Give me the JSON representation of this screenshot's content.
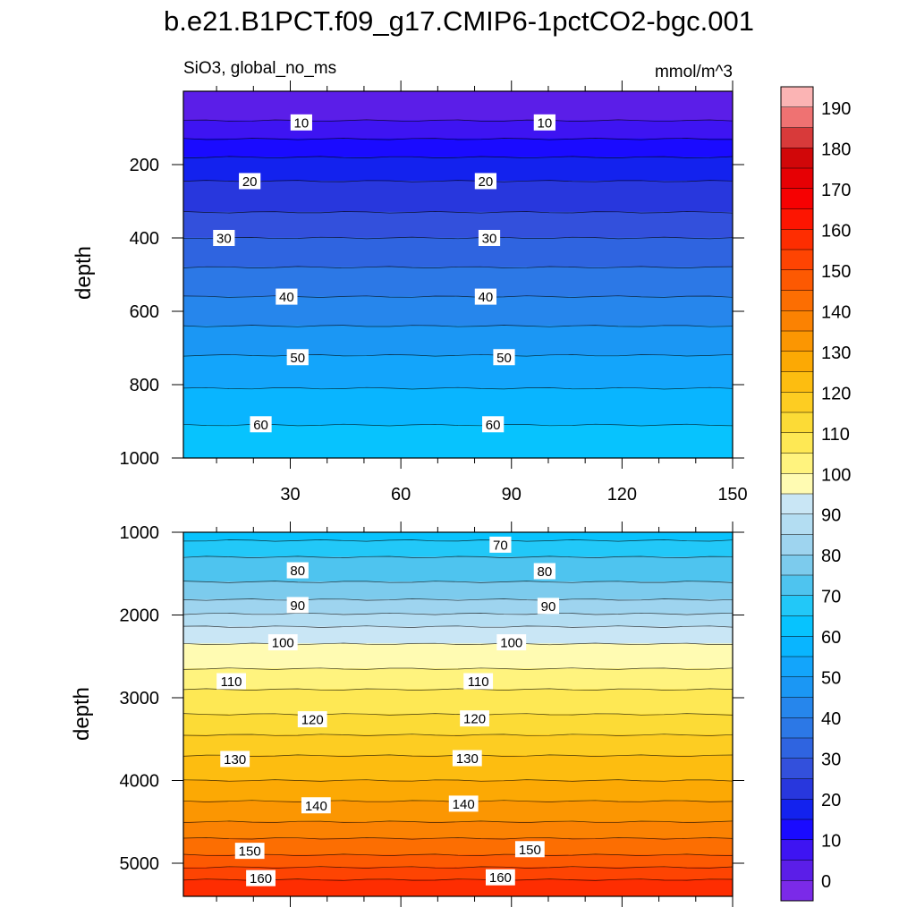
{
  "title": "b.e21.B1PCT.f09_g17.CMIP6-1pctCO2-bgc.001",
  "subtitle_left": "SiO3, global_no_ms",
  "subtitle_right": "mmol/m^3",
  "chart_data": [
    {
      "type": "heatmap",
      "panel": "upper",
      "variable": "SiO3",
      "units": "mmol/m^3",
      "xlabel": "",
      "ylabel": "depth",
      "xlim": [
        1,
        150
      ],
      "ylim": [
        1000,
        0
      ],
      "xticks": [
        30,
        60,
        90,
        120,
        150
      ],
      "yticks": [
        200,
        400,
        600,
        800,
        1000
      ],
      "contour_interval": 5,
      "depth_profile": [
        [
          5,
          6
        ],
        [
          70,
          9
        ],
        [
          130,
          15
        ],
        [
          190,
          21
        ],
        [
          245,
          25
        ],
        [
          330,
          30
        ],
        [
          400,
          35
        ],
        [
          480,
          40
        ],
        [
          560,
          45
        ],
        [
          640,
          50
        ],
        [
          720,
          55
        ],
        [
          810,
          60
        ],
        [
          910,
          65
        ],
        [
          1000,
          68
        ]
      ],
      "contour_labels": [
        {
          "value": 10,
          "x": 33,
          "depth": 85
        },
        {
          "value": 10,
          "x": 99,
          "depth": 85
        },
        {
          "value": 20,
          "x": 19,
          "depth": 245
        },
        {
          "value": 20,
          "x": 83,
          "depth": 245
        },
        {
          "value": 30,
          "x": 12,
          "depth": 400
        },
        {
          "value": 30,
          "x": 84,
          "depth": 400
        },
        {
          "value": 40,
          "x": 29,
          "depth": 560
        },
        {
          "value": 40,
          "x": 83,
          "depth": 560
        },
        {
          "value": 50,
          "x": 32,
          "depth": 725
        },
        {
          "value": 50,
          "x": 88,
          "depth": 725
        },
        {
          "value": 60,
          "x": 22,
          "depth": 908
        },
        {
          "value": 60,
          "x": 85,
          "depth": 908
        }
      ]
    },
    {
      "type": "heatmap",
      "panel": "lower",
      "variable": "SiO3",
      "units": "mmol/m^3",
      "xlabel": "",
      "ylabel": "depth",
      "xlim": [
        1,
        150
      ],
      "ylim": [
        5400,
        1000
      ],
      "xticks": [
        30,
        60,
        90,
        120,
        150
      ],
      "yticks": [
        1000,
        2000,
        3000,
        4000,
        5000
      ],
      "contour_interval": 5,
      "depth_profile": [
        [
          1000,
          67
        ],
        [
          1100,
          70
        ],
        [
          1300,
          75
        ],
        [
          1600,
          80
        ],
        [
          1900,
          87
        ],
        [
          2100,
          94
        ],
        [
          2350,
          100
        ],
        [
          2650,
          105
        ],
        [
          2900,
          110
        ],
        [
          3200,
          115
        ],
        [
          3450,
          120
        ],
        [
          3700,
          125
        ],
        [
          4000,
          130
        ],
        [
          4250,
          135
        ],
        [
          4500,
          140
        ],
        [
          4700,
          145
        ],
        [
          4900,
          150
        ],
        [
          5050,
          155
        ],
        [
          5200,
          160
        ],
        [
          5400,
          165
        ]
      ],
      "contour_labels": [
        {
          "value": 70,
          "x": 87,
          "depth": 1150
        },
        {
          "value": 80,
          "x": 32,
          "depth": 1460
        },
        {
          "value": 80,
          "x": 99,
          "depth": 1470
        },
        {
          "value": 90,
          "x": 32,
          "depth": 1880
        },
        {
          "value": 90,
          "x": 100,
          "depth": 1890
        },
        {
          "value": 100,
          "x": 28,
          "depth": 2330
        },
        {
          "value": 100,
          "x": 90,
          "depth": 2330
        },
        {
          "value": 110,
          "x": 14,
          "depth": 2800
        },
        {
          "value": 110,
          "x": 81,
          "depth": 2800
        },
        {
          "value": 120,
          "x": 36,
          "depth": 3260
        },
        {
          "value": 120,
          "x": 80,
          "depth": 3250
        },
        {
          "value": 130,
          "x": 15,
          "depth": 3740
        },
        {
          "value": 130,
          "x": 78,
          "depth": 3730
        },
        {
          "value": 140,
          "x": 37,
          "depth": 4300
        },
        {
          "value": 140,
          "x": 77,
          "depth": 4280
        },
        {
          "value": 150,
          "x": 19,
          "depth": 4850
        },
        {
          "value": 150,
          "x": 95,
          "depth": 4830
        },
        {
          "value": 160,
          "x": 22,
          "depth": 5180
        },
        {
          "value": 160,
          "x": 87,
          "depth": 5170
        }
      ]
    }
  ],
  "colorbar": {
    "labels": [
      "0",
      "10",
      "20",
      "30",
      "40",
      "50",
      "60",
      "70",
      "80",
      "90",
      "100",
      "110",
      "120",
      "130",
      "140",
      "150",
      "160",
      "170",
      "180",
      "190"
    ],
    "colors": [
      "#7b2ae8",
      "#5b1ee8",
      "#3e14f2",
      "#1a0bff",
      "#1322ee",
      "#2837dd",
      "#3350dc",
      "#2f64e0",
      "#2c78e6",
      "#2686ec",
      "#1b97f4",
      "#13a5fb",
      "#09b5ff",
      "#07c3fe",
      "#22c8f8",
      "#4ec4ef",
      "#7ccbed",
      "#9ed4ef",
      "#b3ddf2",
      "#c9e6f5",
      "#fffbb2",
      "#fff37e",
      "#fee854",
      "#fcdb36",
      "#fdcd22",
      "#fdbd10",
      "#fca904",
      "#fb9602",
      "#fb8202",
      "#fc6e02",
      "#fd5902",
      "#fe4402",
      "#fe2d01",
      "#fd1501",
      "#f60102",
      "#e60004",
      "#d10709",
      "#d83a3a",
      "#ef7272",
      "#fbb4b4"
    ]
  }
}
